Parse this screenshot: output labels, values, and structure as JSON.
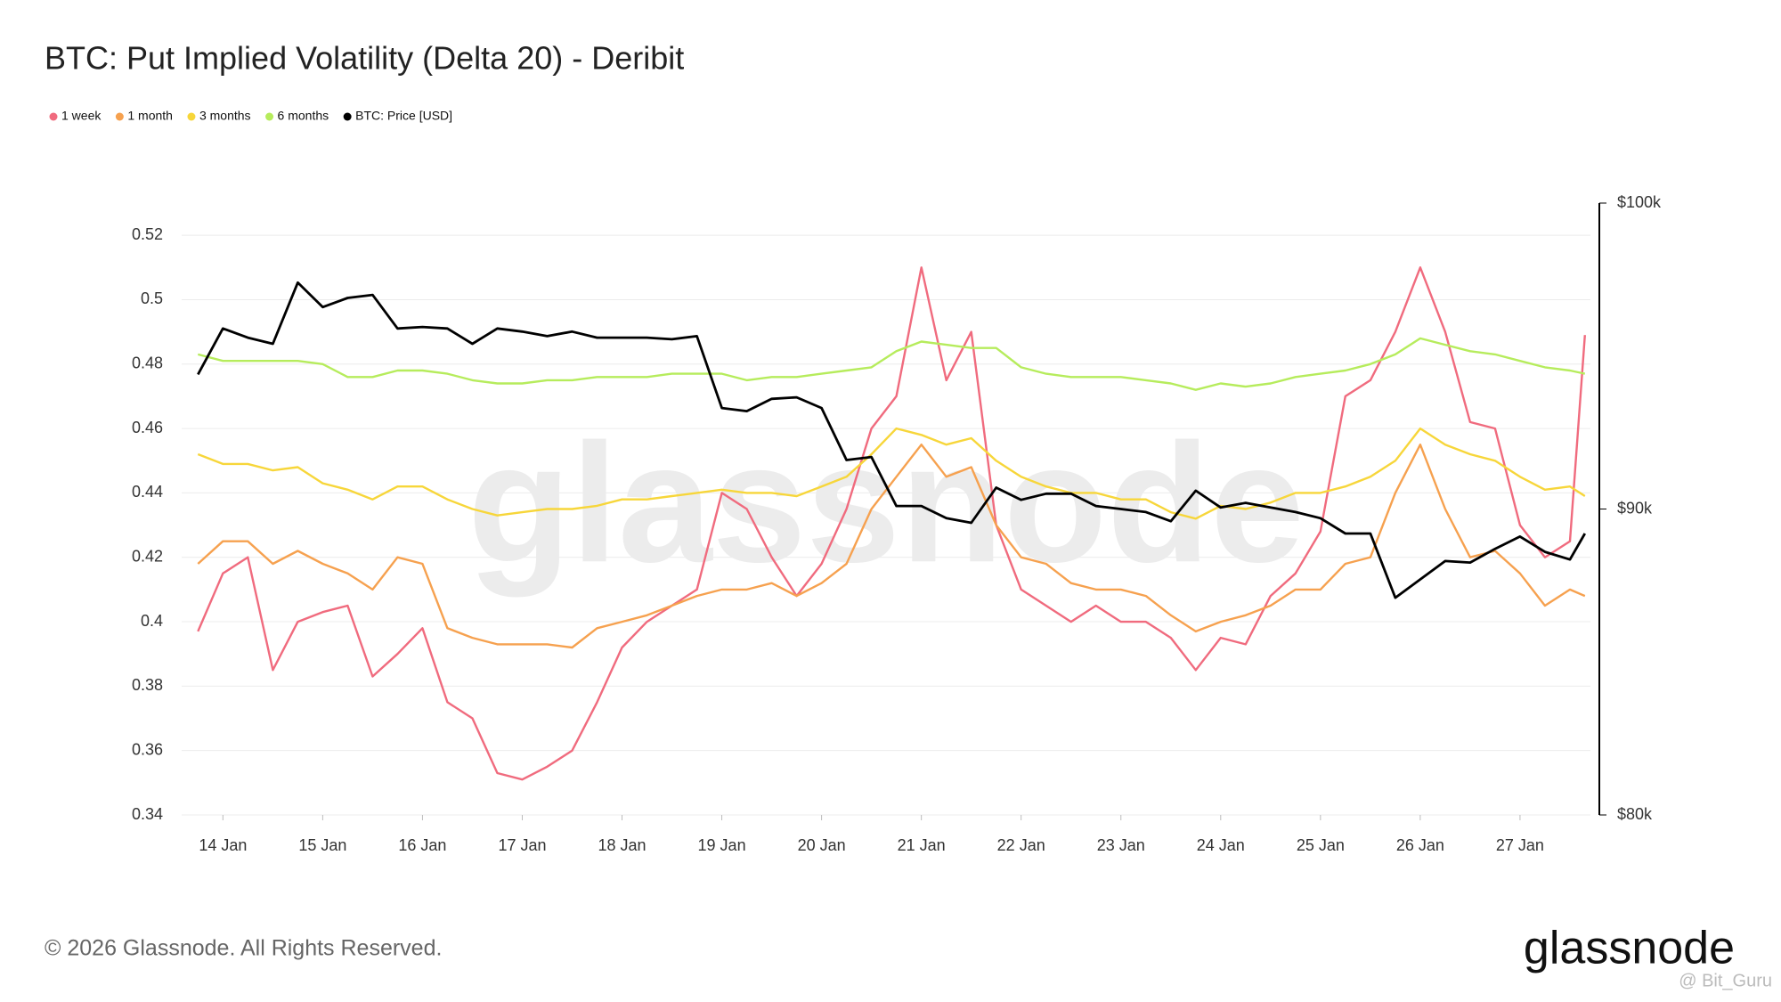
{
  "chart_data": {
    "type": "line",
    "title": "BTC: Put Implied Volatility (Delta 20) - Deribit",
    "watermark": "glassnode",
    "footer": "© 2026 Glassnode. All Rights Reserved.",
    "brand": "glassnode",
    "credit": "@ Bit_Guru",
    "legend": "top-left",
    "grid": true,
    "x": [
      13.75,
      14,
      14.25,
      14.5,
      14.75,
      15,
      15.25,
      15.5,
      15.75,
      16,
      16.25,
      16.5,
      16.75,
      17,
      17.25,
      17.5,
      17.75,
      18,
      18.25,
      18.5,
      18.75,
      19,
      19.25,
      19.5,
      19.75,
      20,
      20.25,
      20.5,
      20.75,
      21,
      21.25,
      21.5,
      21.75,
      22,
      22.25,
      22.5,
      22.75,
      23,
      23.25,
      23.5,
      23.75,
      24,
      24.25,
      24.5,
      24.75,
      25,
      25.25,
      25.5,
      25.75,
      26,
      26.25,
      26.5,
      26.75,
      27,
      27.25,
      27.5,
      27.65
    ],
    "xlim": [
      13.64,
      27.67
    ],
    "xticks": [
      {
        "value": 14,
        "label": "14 Jan"
      },
      {
        "value": 15,
        "label": "15 Jan"
      },
      {
        "value": 16,
        "label": "16 Jan"
      },
      {
        "value": 17,
        "label": "17 Jan"
      },
      {
        "value": 18,
        "label": "18 Jan"
      },
      {
        "value": 19,
        "label": "19 Jan"
      },
      {
        "value": 20,
        "label": "20 Jan"
      },
      {
        "value": 21,
        "label": "21 Jan"
      },
      {
        "value": 22,
        "label": "22 Jan"
      },
      {
        "value": 23,
        "label": "23 Jan"
      },
      {
        "value": 24,
        "label": "24 Jan"
      },
      {
        "value": 25,
        "label": "25 Jan"
      },
      {
        "value": 26,
        "label": "26 Jan"
      },
      {
        "value": 27,
        "label": "27 Jan"
      }
    ],
    "ylim": [
      0.34,
      0.53
    ],
    "yticks": [
      0.34,
      0.36,
      0.38,
      0.4,
      0.42,
      0.44,
      0.46,
      0.48,
      0.5,
      0.52
    ],
    "y2lim": [
      80000,
      100000
    ],
    "y2ticks": [
      {
        "value": 80000,
        "label": "$80k"
      },
      {
        "value": 90000,
        "label": "$90k"
      },
      {
        "value": 100000,
        "label": "$100k"
      }
    ],
    "series": [
      {
        "name": "1 week",
        "color": "#f06b7e",
        "values": [
          0.397,
          0.415,
          0.42,
          0.385,
          0.4,
          0.403,
          0.405,
          0.383,
          0.39,
          0.398,
          0.375,
          0.37,
          0.353,
          0.351,
          0.355,
          0.36,
          0.375,
          0.392,
          0.4,
          0.405,
          0.41,
          0.44,
          0.435,
          0.42,
          0.408,
          0.418,
          0.435,
          0.46,
          0.47,
          0.51,
          0.475,
          0.49,
          0.43,
          0.41,
          0.405,
          0.4,
          0.405,
          0.4,
          0.4,
          0.395,
          0.385,
          0.395,
          0.393,
          0.408,
          0.415,
          0.428,
          0.47,
          0.475,
          0.49,
          0.51,
          0.49,
          0.462,
          0.46,
          0.43,
          0.42,
          0.425,
          0.489
        ]
      },
      {
        "name": "1 month",
        "color": "#f6a14f",
        "values": [
          0.418,
          0.425,
          0.425,
          0.418,
          0.422,
          0.418,
          0.415,
          0.41,
          0.42,
          0.418,
          0.398,
          0.395,
          0.393,
          0.393,
          0.393,
          0.392,
          0.398,
          0.4,
          0.402,
          0.405,
          0.408,
          0.41,
          0.41,
          0.412,
          0.408,
          0.412,
          0.418,
          0.435,
          0.445,
          0.455,
          0.445,
          0.448,
          0.43,
          0.42,
          0.418,
          0.412,
          0.41,
          0.41,
          0.408,
          0.402,
          0.397,
          0.4,
          0.402,
          0.405,
          0.41,
          0.41,
          0.418,
          0.42,
          0.44,
          0.455,
          0.435,
          0.42,
          0.422,
          0.415,
          0.405,
          0.41,
          0.408
        ]
      },
      {
        "name": "3 months",
        "color": "#f7d63a",
        "values": [
          0.452,
          0.449,
          0.449,
          0.447,
          0.448,
          0.443,
          0.441,
          0.438,
          0.442,
          0.442,
          0.438,
          0.435,
          0.433,
          0.434,
          0.435,
          0.435,
          0.436,
          0.438,
          0.438,
          0.439,
          0.44,
          0.441,
          0.44,
          0.44,
          0.439,
          0.442,
          0.445,
          0.452,
          0.46,
          0.458,
          0.455,
          0.457,
          0.45,
          0.445,
          0.442,
          0.44,
          0.44,
          0.438,
          0.438,
          0.434,
          0.432,
          0.436,
          0.435,
          0.437,
          0.44,
          0.44,
          0.442,
          0.445,
          0.45,
          0.46,
          0.455,
          0.452,
          0.45,
          0.445,
          0.441,
          0.442,
          0.439
        ]
      },
      {
        "name": "6 months",
        "color": "#b6ec5c",
        "values": [
          0.483,
          0.481,
          0.481,
          0.481,
          0.481,
          0.48,
          0.476,
          0.476,
          0.478,
          0.478,
          0.477,
          0.475,
          0.474,
          0.474,
          0.475,
          0.475,
          0.476,
          0.476,
          0.476,
          0.477,
          0.477,
          0.477,
          0.475,
          0.476,
          0.476,
          0.477,
          0.478,
          0.479,
          0.484,
          0.487,
          0.486,
          0.485,
          0.485,
          0.479,
          0.477,
          0.476,
          0.476,
          0.476,
          0.475,
          0.474,
          0.472,
          0.474,
          0.473,
          0.474,
          0.476,
          0.477,
          0.478,
          0.48,
          0.483,
          0.488,
          0.486,
          0.484,
          0.483,
          0.481,
          0.479,
          0.478,
          0.477
        ]
      },
      {
        "name": "BTC: Price [USD]",
        "color": "#000000",
        "axis": "y2",
        "values": [
          94400,
          95900,
          95600,
          95400,
          97400,
          96600,
          96900,
          97000,
          95900,
          95950,
          95900,
          95400,
          95900,
          95800,
          95650,
          95800,
          95600,
          95600,
          95600,
          95550,
          95650,
          93300,
          93200,
          93600,
          93650,
          93300,
          91600,
          91700,
          90100,
          90100,
          89700,
          89550,
          90700,
          90300,
          90500,
          90500,
          90100,
          90000,
          89900,
          89600,
          90600,
          90050,
          90200,
          90050,
          89900,
          89700,
          89200,
          89200,
          87100,
          87700,
          88300,
          88250,
          88700,
          89100,
          88600,
          88350,
          89200
        ]
      }
    ]
  }
}
